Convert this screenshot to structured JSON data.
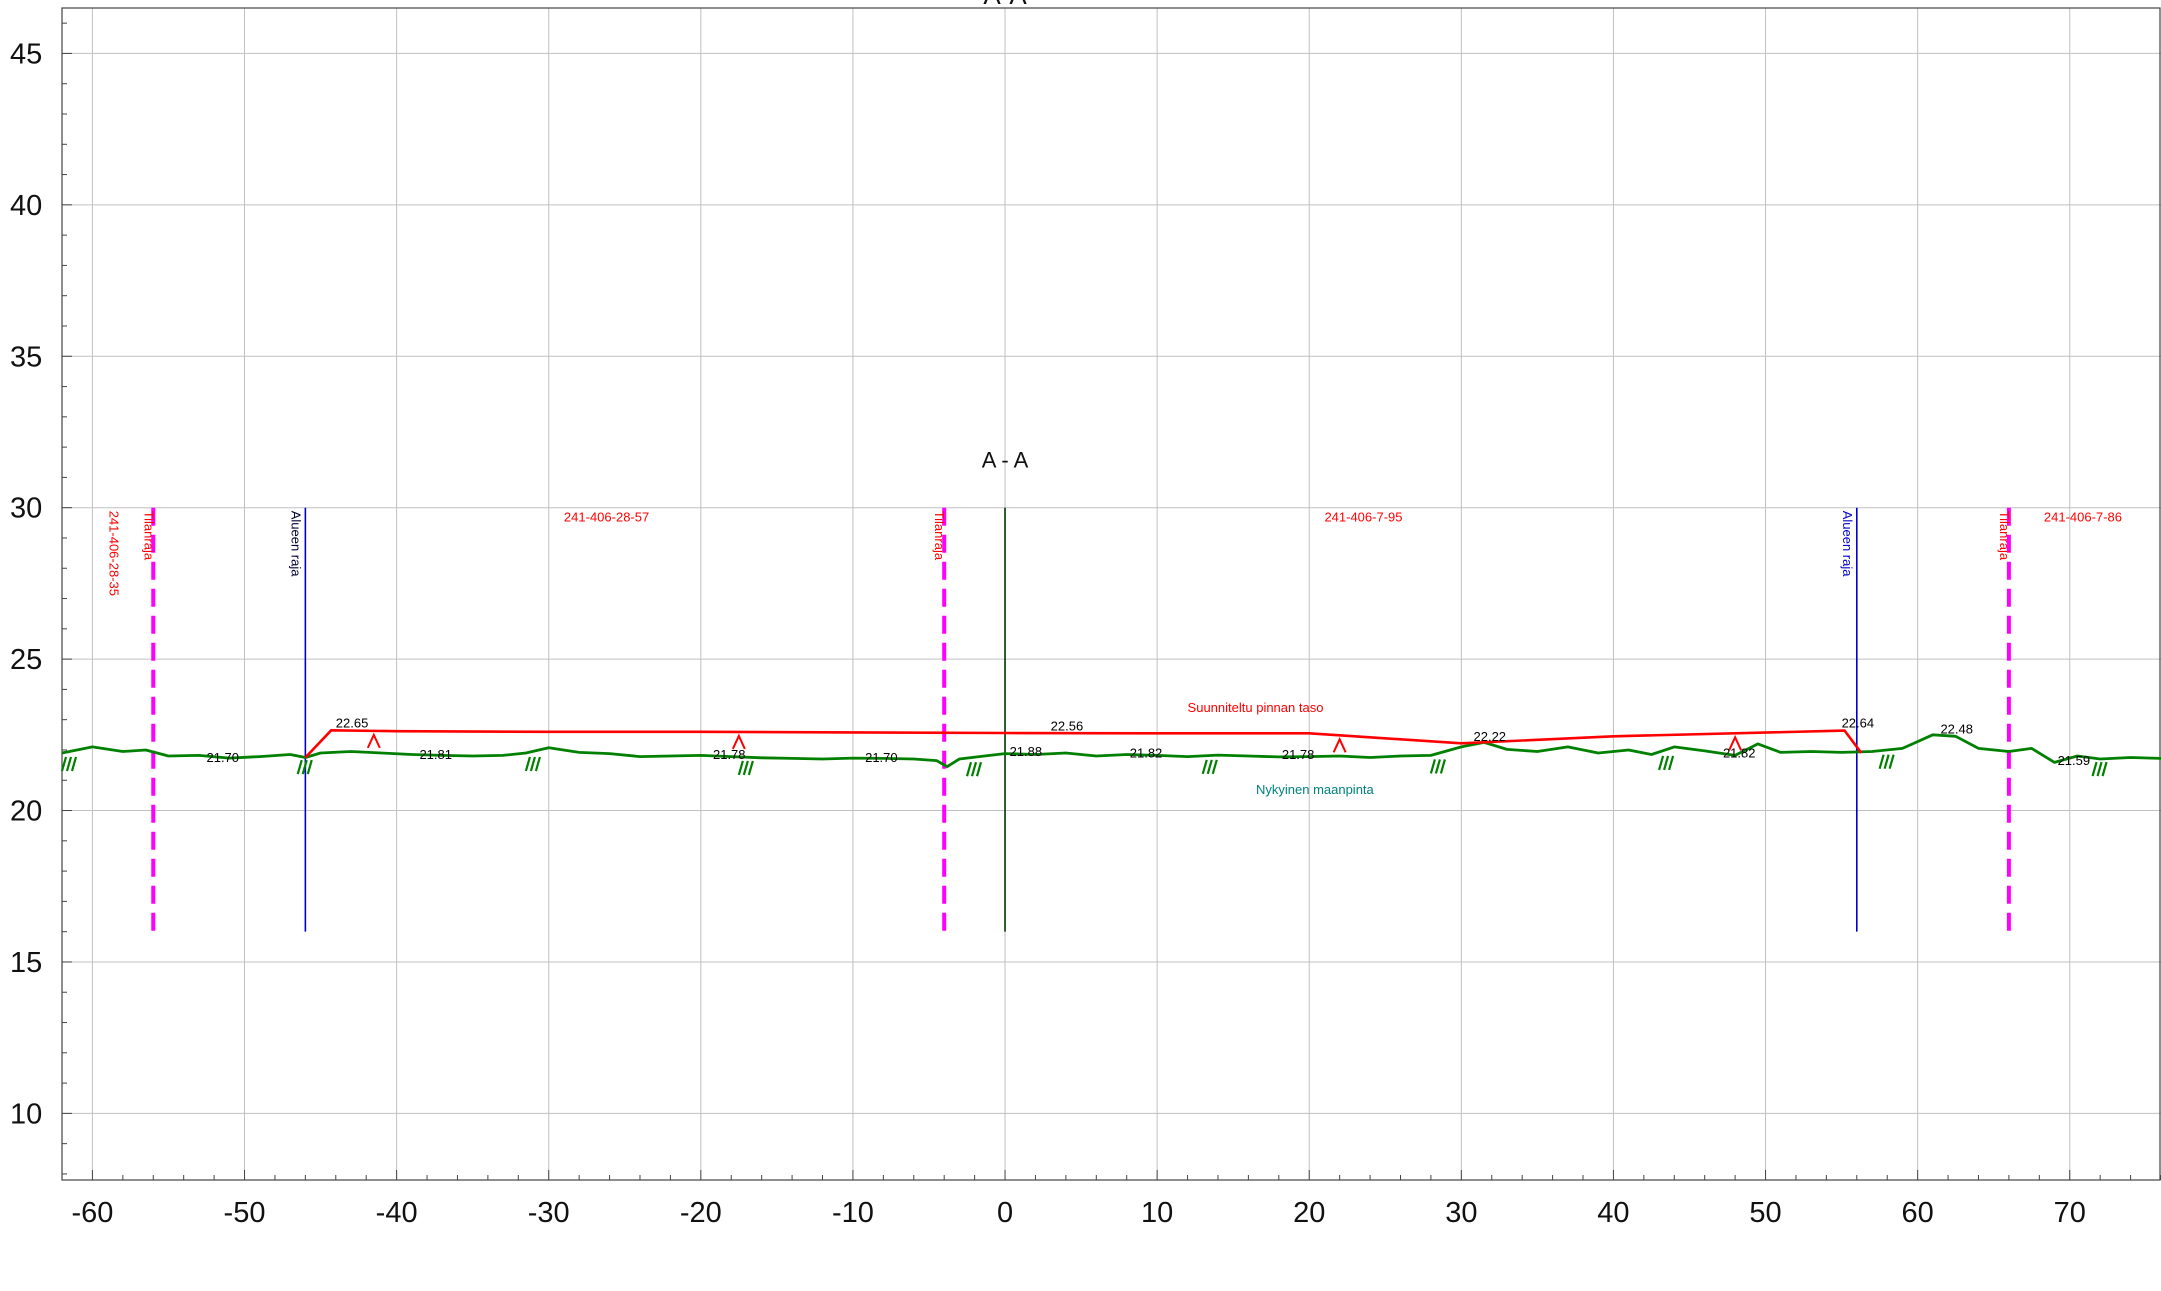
{
  "page_title": "A-A",
  "chart_data": {
    "type": "line",
    "title": "",
    "section_label": "A - A",
    "xlim": [
      -62,
      76
    ],
    "ylim": [
      7.8,
      46.5
    ],
    "x_ticks": [
      -60,
      -50,
      -40,
      -30,
      -20,
      -10,
      0,
      10,
      20,
      30,
      40,
      50,
      60,
      70
    ],
    "y_ticks": [
      10,
      15,
      20,
      25,
      30,
      35,
      40,
      45
    ],
    "grid": true,
    "colors": {
      "ground": "#008000",
      "design": "#ff0000",
      "property_boundary": "#ff00ff",
      "area_boundary": "#0000cc",
      "centerline": "#003300",
      "grid": "#c0c0c0"
    },
    "series": [
      {
        "name": "Nykyinen maanpinta",
        "points": [
          [
            -62,
            21.9
          ],
          [
            -60,
            22.1
          ],
          [
            -58,
            21.95
          ],
          [
            -56.5,
            22.0
          ],
          [
            -55,
            21.8
          ],
          [
            -53,
            21.82
          ],
          [
            -51,
            21.73
          ],
          [
            -49,
            21.78
          ],
          [
            -47,
            21.85
          ],
          [
            -46,
            21.75
          ],
          [
            -45,
            21.9
          ],
          [
            -43,
            21.95
          ],
          [
            -41,
            21.9
          ],
          [
            -39,
            21.85
          ],
          [
            -37,
            21.82
          ],
          [
            -35,
            21.8
          ],
          [
            -33,
            21.82
          ],
          [
            -31.5,
            21.9
          ],
          [
            -30,
            22.07
          ],
          [
            -28,
            21.92
          ],
          [
            -26,
            21.88
          ],
          [
            -24,
            21.78
          ],
          [
            -22,
            21.8
          ],
          [
            -20,
            21.82
          ],
          [
            -18,
            21.78
          ],
          [
            -16,
            21.74
          ],
          [
            -14,
            21.72
          ],
          [
            -12,
            21.7
          ],
          [
            -10,
            21.73
          ],
          [
            -8,
            21.72
          ],
          [
            -6,
            21.7
          ],
          [
            -4.5,
            21.65
          ],
          [
            -3.8,
            21.45
          ],
          [
            -3,
            21.7
          ],
          [
            -1,
            21.82
          ],
          [
            0,
            21.88
          ],
          [
            2,
            21.85
          ],
          [
            4,
            21.9
          ],
          [
            6,
            21.8
          ],
          [
            8,
            21.85
          ],
          [
            10,
            21.82
          ],
          [
            12,
            21.78
          ],
          [
            14,
            21.83
          ],
          [
            16,
            21.8
          ],
          [
            18,
            21.77
          ],
          [
            20,
            21.78
          ],
          [
            22,
            21.8
          ],
          [
            24,
            21.75
          ],
          [
            26,
            21.8
          ],
          [
            28,
            21.82
          ],
          [
            30,
            22.1
          ],
          [
            31.5,
            22.25
          ],
          [
            33,
            22.02
          ],
          [
            35,
            21.95
          ],
          [
            37,
            22.1
          ],
          [
            39,
            21.9
          ],
          [
            41,
            22.0
          ],
          [
            42.5,
            21.85
          ],
          [
            44,
            22.1
          ],
          [
            46,
            21.97
          ],
          [
            48,
            21.82
          ],
          [
            49.5,
            22.2
          ],
          [
            51,
            21.92
          ],
          [
            53,
            21.95
          ],
          [
            55,
            21.92
          ],
          [
            57,
            21.95
          ],
          [
            59,
            22.05
          ],
          [
            61,
            22.5
          ],
          [
            62.5,
            22.45
          ],
          [
            64,
            22.05
          ],
          [
            66,
            21.95
          ],
          [
            67.5,
            22.05
          ],
          [
            69,
            21.59
          ],
          [
            70.5,
            21.8
          ],
          [
            72,
            21.7
          ],
          [
            74,
            21.75
          ],
          [
            76,
            21.72
          ]
        ]
      },
      {
        "name": "Suunniteltu pinnan taso",
        "points": [
          [
            -46,
            21.75
          ],
          [
            -44.3,
            22.65
          ],
          [
            -40,
            22.62
          ],
          [
            -30,
            22.6
          ],
          [
            -20,
            22.6
          ],
          [
            -10,
            22.58
          ],
          [
            0,
            22.56
          ],
          [
            10,
            22.55
          ],
          [
            20,
            22.55
          ],
          [
            30,
            22.22
          ],
          [
            40,
            22.45
          ],
          [
            55.2,
            22.64
          ],
          [
            56.3,
            21.9
          ]
        ]
      }
    ],
    "elevation_labels": [
      {
        "text": "22.65",
        "x": -44.0,
        "y": 22.75,
        "color": "black"
      },
      {
        "text": "21.70",
        "x": -52.5,
        "y": 21.6,
        "color": "black"
      },
      {
        "text": "21.81",
        "x": -38.5,
        "y": 21.7,
        "color": "black"
      },
      {
        "text": "21.78",
        "x": -19.2,
        "y": 21.7,
        "color": "black"
      },
      {
        "text": "21.70",
        "x": -9.2,
        "y": 21.6,
        "color": "black"
      },
      {
        "text": "21.88",
        "x": 0.3,
        "y": 21.8,
        "color": "black"
      },
      {
        "text": "22.56",
        "x": 3.0,
        "y": 22.65,
        "color": "black"
      },
      {
        "text": "21.82",
        "x": 8.2,
        "y": 21.75,
        "color": "black"
      },
      {
        "text": "21.78",
        "x": 18.2,
        "y": 21.7,
        "color": "black"
      },
      {
        "text": "22.22",
        "x": 30.8,
        "y": 22.3,
        "color": "black"
      },
      {
        "text": "21.82",
        "x": 47.2,
        "y": 21.75,
        "color": "black"
      },
      {
        "text": "22.64",
        "x": 55.0,
        "y": 22.75,
        "color": "black"
      },
      {
        "text": "22.48",
        "x": 61.5,
        "y": 22.55,
        "color": "black"
      },
      {
        "text": "21.59",
        "x": 69.2,
        "y": 21.5,
        "color": "black"
      }
    ],
    "series_labels": [
      {
        "text": "Suunniteltu pinnan taso",
        "x": 12.0,
        "y": 23.25,
        "color": "red"
      },
      {
        "text": "Nykyinen maanpinta",
        "x": 16.5,
        "y": 20.55,
        "color": "teal"
      }
    ],
    "parcel_labels": [
      {
        "text": "241-406-28-57",
        "x": -29.0,
        "y": 29.55
      },
      {
        "text": "241-406-7-95",
        "x": 21.0,
        "y": 29.55
      },
      {
        "text": "241-406-7-86",
        "x": 68.3,
        "y": 29.55
      }
    ],
    "vertical_lines": [
      {
        "kind": "property",
        "x": -56,
        "y1": 16,
        "y2": 30,
        "label": "Tilanraja",
        "label2": "241-406-28-35"
      },
      {
        "kind": "area",
        "x": -46,
        "y1": 16,
        "y2": 30,
        "label": "Alueen raja"
      },
      {
        "kind": "property",
        "x": -4,
        "y1": 16,
        "y2": 30,
        "label": "Tilanraja"
      },
      {
        "kind": "centerline",
        "x": 0,
        "y1": 16,
        "y2": 30,
        "label": ""
      },
      {
        "kind": "area",
        "x": 56,
        "y1": 16,
        "y2": 30,
        "label": "Alueen raja"
      },
      {
        "kind": "property",
        "x": 66,
        "y1": 16,
        "y2": 30,
        "label": "Tilanraja"
      }
    ],
    "hatch_marks_x": [
      -62,
      -46.5,
      -31.5,
      -17.5,
      -2.5,
      13,
      28,
      43,
      57.5,
      71.5
    ],
    "slope_markers_x": [
      -41.5,
      -17.5,
      22,
      48
    ]
  }
}
